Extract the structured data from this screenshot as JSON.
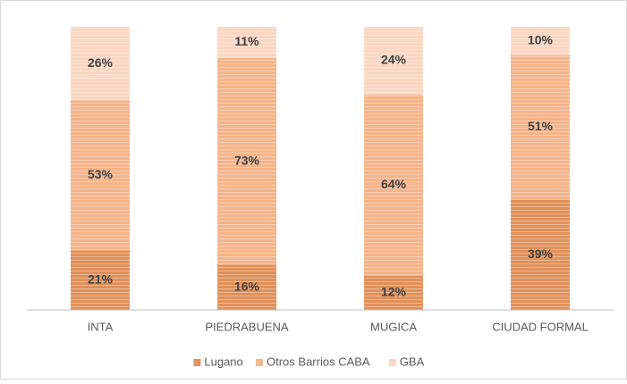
{
  "chart_data": {
    "type": "stacked_bar",
    "categories": [
      "INTA",
      "PIEDRABUENA",
      "MUGICA",
      "CIUDAD FORMAL"
    ],
    "series": [
      {
        "name": "Lugano",
        "color": "#e0915a",
        "values": [
          21,
          16,
          12,
          39
        ],
        "value_labels": [
          "21%",
          "16%",
          "12%",
          "39%"
        ]
      },
      {
        "name": "Otros Barrios CABA",
        "color": "#f5b48a",
        "values": [
          53,
          73,
          64,
          51
        ],
        "value_labels": [
          "53%",
          "73%",
          "64%",
          "51%"
        ]
      },
      {
        "name": "GBA",
        "color": "#fbd6c2",
        "values": [
          26,
          11,
          24,
          10
        ],
        "value_labels": [
          "26%",
          "11%",
          "24%",
          "10%"
        ]
      }
    ],
    "ylim": [
      0,
      100
    ],
    "legend": "bottom"
  }
}
